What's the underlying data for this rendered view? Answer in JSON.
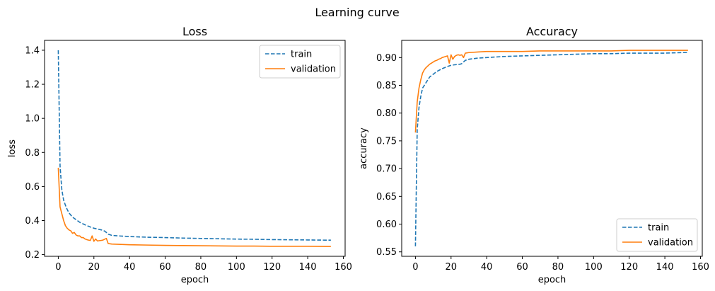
{
  "figure_title": "Learning curve",
  "colors": {
    "train": "#1f77b4",
    "validation": "#ff7f0e"
  },
  "chart_data": [
    {
      "type": "line",
      "title": "Loss",
      "xlabel": "epoch",
      "ylabel": "loss",
      "xlim": [
        -7.7,
        161
      ],
      "ylim": [
        0.19,
        1.458
      ],
      "xticks": [
        0,
        20,
        40,
        60,
        80,
        100,
        120,
        140,
        160
      ],
      "yticks": [
        0.2,
        0.4,
        0.6,
        0.8,
        1.0,
        1.2,
        1.4
      ],
      "ytick_labels": [
        "0.2",
        "0.4",
        "0.6",
        "0.8",
        "1.0",
        "1.2",
        "1.4"
      ],
      "legend": {
        "position": "top-right",
        "entries": [
          "train",
          "validation"
        ]
      },
      "series": [
        {
          "name": "train",
          "style": "dashed",
          "x": [
            0,
            1,
            2,
            3,
            4,
            5,
            6,
            8,
            10,
            12,
            15,
            18,
            20,
            22,
            25,
            26,
            27,
            28,
            30,
            35,
            40,
            50,
            60,
            70,
            80,
            90,
            100,
            110,
            120,
            130,
            140,
            150,
            153
          ],
          "y": [
            1.4,
            0.72,
            0.58,
            0.52,
            0.49,
            0.465,
            0.445,
            0.42,
            0.405,
            0.39,
            0.375,
            0.362,
            0.355,
            0.35,
            0.343,
            0.338,
            0.33,
            0.32,
            0.313,
            0.309,
            0.306,
            0.302,
            0.3,
            0.297,
            0.295,
            0.293,
            0.291,
            0.29,
            0.288,
            0.287,
            0.286,
            0.285,
            0.285
          ]
        },
        {
          "name": "validation",
          "style": "solid",
          "x": [
            0,
            1,
            2,
            3,
            4,
            5,
            6,
            7,
            8,
            9,
            10,
            11,
            12,
            13,
            14,
            15,
            16,
            17,
            18,
            19,
            20,
            21,
            22,
            23,
            24,
            25,
            26,
            27,
            28,
            30,
            35,
            40,
            50,
            60,
            70,
            80,
            90,
            100,
            110,
            120,
            130,
            140,
            150,
            153
          ],
          "y": [
            0.71,
            0.48,
            0.44,
            0.4,
            0.37,
            0.355,
            0.345,
            0.34,
            0.325,
            0.33,
            0.315,
            0.31,
            0.31,
            0.3,
            0.3,
            0.292,
            0.288,
            0.285,
            0.283,
            0.31,
            0.278,
            0.292,
            0.28,
            0.282,
            0.283,
            0.285,
            0.29,
            0.295,
            0.265,
            0.262,
            0.26,
            0.258,
            0.256,
            0.254,
            0.253,
            0.252,
            0.251,
            0.25,
            0.25,
            0.249,
            0.249,
            0.249,
            0.248,
            0.248
          ]
        }
      ]
    },
    {
      "type": "line",
      "title": "Accuracy",
      "xlabel": "epoch",
      "ylabel": "accuracy",
      "xlim": [
        -7.7,
        161
      ],
      "ylim": [
        0.542,
        0.931
      ],
      "xticks": [
        0,
        20,
        40,
        60,
        80,
        100,
        120,
        140,
        160
      ],
      "yticks": [
        0.55,
        0.6,
        0.65,
        0.7,
        0.75,
        0.8,
        0.85,
        0.9
      ],
      "ytick_labels": [
        "0.55",
        "0.60",
        "0.65",
        "0.70",
        "0.75",
        "0.80",
        "0.85",
        "0.90"
      ],
      "legend": {
        "position": "bottom-right",
        "entries": [
          "train",
          "validation"
        ]
      },
      "series": [
        {
          "name": "train",
          "style": "dashed",
          "x": [
            0,
            1,
            2,
            3,
            4,
            5,
            6,
            8,
            10,
            12,
            15,
            18,
            20,
            22,
            25,
            26,
            27,
            28,
            30,
            35,
            40,
            50,
            60,
            70,
            80,
            90,
            100,
            110,
            120,
            130,
            140,
            150,
            153
          ],
          "y": [
            0.56,
            0.77,
            0.81,
            0.83,
            0.845,
            0.85,
            0.855,
            0.865,
            0.87,
            0.875,
            0.88,
            0.884,
            0.886,
            0.887,
            0.888,
            0.889,
            0.892,
            0.895,
            0.897,
            0.899,
            0.9,
            0.902,
            0.903,
            0.904,
            0.905,
            0.906,
            0.907,
            0.907,
            0.908,
            0.908,
            0.908,
            0.909,
            0.909
          ]
        },
        {
          "name": "validation",
          "style": "solid",
          "x": [
            0,
            1,
            2,
            3,
            4,
            5,
            6,
            7,
            8,
            9,
            10,
            11,
            12,
            13,
            14,
            15,
            16,
            17,
            18,
            19,
            20,
            21,
            22,
            23,
            24,
            25,
            26,
            27,
            28,
            30,
            35,
            40,
            50,
            60,
            70,
            80,
            90,
            100,
            110,
            120,
            130,
            140,
            150,
            153
          ],
          "y": [
            0.765,
            0.82,
            0.845,
            0.86,
            0.872,
            0.878,
            0.882,
            0.885,
            0.888,
            0.89,
            0.892,
            0.894,
            0.895,
            0.897,
            0.898,
            0.9,
            0.901,
            0.902,
            0.903,
            0.89,
            0.905,
            0.897,
            0.902,
            0.904,
            0.905,
            0.904,
            0.905,
            0.9,
            0.908,
            0.909,
            0.91,
            0.911,
            0.911,
            0.911,
            0.912,
            0.912,
            0.912,
            0.912,
            0.912,
            0.913,
            0.913,
            0.913,
            0.913,
            0.913
          ]
        }
      ]
    }
  ]
}
